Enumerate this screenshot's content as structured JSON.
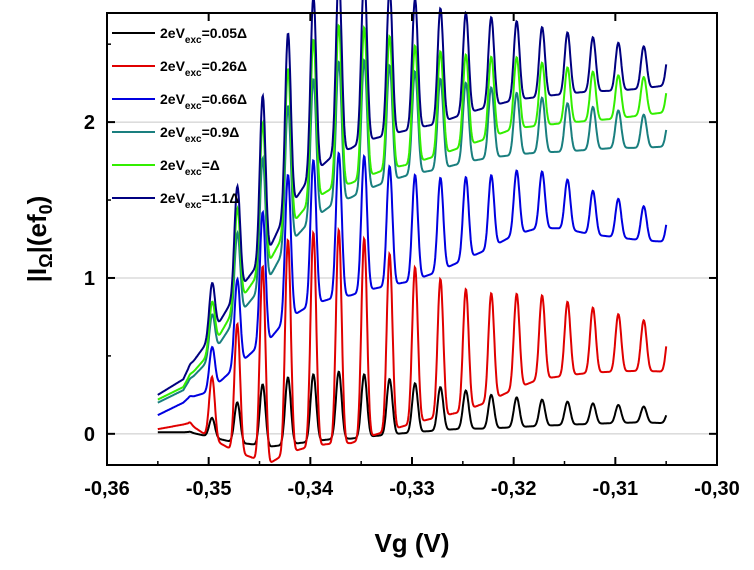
{
  "chart_data": {
    "type": "line",
    "title": "",
    "xlabel": "Vg (V)",
    "ylabel": "|I_Ω|(ef_0)",
    "ylabel_parts": {
      "main": "|I",
      "sub1": "Ω",
      "mid": "|(ef",
      "sub2": "0",
      "end": ")"
    },
    "xlim": [
      -0.36,
      -0.3
    ],
    "ylim": [
      -0.2,
      2.7
    ],
    "x_ticks": [
      -0.36,
      -0.35,
      -0.34,
      -0.33,
      -0.32,
      -0.31,
      -0.3
    ],
    "x_tick_labels": [
      "-0,36",
      "-0,35",
      "-0,34",
      "-0,33",
      "-0,32",
      "-0,31",
      "-0,30"
    ],
    "y_ticks": [
      0,
      1,
      2
    ],
    "y_tick_labels": [
      "0",
      "1",
      "2"
    ],
    "grid": "horizontal",
    "legend_position": "top-left",
    "x_range_data": [
      -0.355,
      -0.305
    ],
    "series": [
      {
        "name": "2eV_exc=0.05Δ",
        "label_parts": [
          "2eV",
          "exc",
          "=0.05Δ"
        ],
        "color": "#000000",
        "low": 0.02,
        "high": 0.45,
        "x": [
          -0.355,
          -0.3525,
          -0.35,
          -0.3475,
          -0.345,
          -0.3425,
          -0.34,
          -0.3375,
          -0.335,
          -0.3325,
          -0.33,
          -0.3275,
          -0.325,
          -0.3225,
          -0.32,
          -0.3175,
          -0.315,
          -0.3125,
          -0.31,
          -0.3075,
          -0.305
        ],
        "y": [
          0.01,
          0.01,
          0.02,
          0.03,
          0.06,
          0.08,
          0.1,
          0.12,
          0.12,
          0.12,
          0.12,
          0.12,
          0.12,
          0.11,
          0.11,
          0.11,
          0.11,
          0.11,
          0.11,
          0.11,
          0.1
        ]
      },
      {
        "name": "2eV_exc=0.26Δ",
        "label_parts": [
          "2eV",
          "exc",
          "=0.26Δ"
        ],
        "color": "#e00000",
        "low": 0.05,
        "high": 1.42,
        "x": [
          -0.355,
          -0.3525,
          -0.35,
          -0.3475,
          -0.345,
          -0.3425,
          -0.34,
          -0.3375,
          -0.335,
          -0.3325,
          -0.33,
          -0.3275,
          -0.325,
          -0.3225,
          -0.32,
          -0.3175,
          -0.315,
          -0.3125,
          -0.31,
          -0.3075,
          -0.305
        ],
        "y": [
          0.03,
          0.06,
          0.1,
          0.16,
          0.25,
          0.35,
          0.4,
          0.42,
          0.42,
          0.42,
          0.42,
          0.42,
          0.42,
          0.45,
          0.5,
          0.54,
          0.54,
          0.54,
          0.53,
          0.52,
          0.5
        ]
      },
      {
        "name": "2eV_exc=0.66Δ",
        "label_parts": [
          "2eV",
          "exc",
          "=0.66Δ"
        ],
        "color": "#0000e0",
        "low": 0.22,
        "high": 1.9,
        "x": [
          -0.355,
          -0.3525,
          -0.35,
          -0.3475,
          -0.345,
          -0.3425,
          -0.34,
          -0.3375,
          -0.335,
          -0.3325,
          -0.33,
          -0.3275,
          -0.325,
          -0.3225,
          -0.32,
          -0.3175,
          -0.315,
          -0.3125,
          -0.31,
          -0.3075,
          -0.305
        ],
        "y": [
          0.12,
          0.2,
          0.35,
          0.6,
          0.85,
          1.05,
          1.15,
          1.2,
          1.22,
          1.22,
          1.22,
          1.25,
          1.3,
          1.35,
          1.42,
          1.45,
          1.43,
          1.38,
          1.35,
          1.32,
          1.3
        ]
      },
      {
        "name": "2eV_exc=0.9Δ",
        "label_parts": [
          "2eV",
          "exc",
          "=0.9Δ"
        ],
        "color": "#1a7f7f",
        "low": 0.35,
        "high": 1.98,
        "x": [
          -0.355,
          -0.3525,
          -0.35,
          -0.3475,
          -0.345,
          -0.3425,
          -0.34,
          -0.3375,
          -0.335,
          -0.3325,
          -0.33,
          -0.3275,
          -0.325,
          -0.3225,
          -0.32,
          -0.3175,
          -0.315,
          -0.3125,
          -0.31,
          -0.3075,
          -0.305
        ],
        "y": [
          0.2,
          0.28,
          0.55,
          0.9,
          1.2,
          1.5,
          1.68,
          1.8,
          1.85,
          1.88,
          1.9,
          1.9,
          1.92,
          1.93,
          1.93,
          1.93,
          1.92,
          1.92,
          1.92,
          1.91,
          1.91
        ]
      },
      {
        "name": "2eV_exc=Δ",
        "label_parts": [
          "2eV",
          "exc",
          "=Δ"
        ],
        "color": "#33ee00",
        "low": 0.35,
        "high": 2.22,
        "x": [
          -0.355,
          -0.3525,
          -0.35,
          -0.3475,
          -0.345,
          -0.3425,
          -0.34,
          -0.3375,
          -0.335,
          -0.3325,
          -0.33,
          -0.3275,
          -0.325,
          -0.3225,
          -0.32,
          -0.3175,
          -0.315,
          -0.3125,
          -0.31,
          -0.3075,
          -0.305
        ],
        "y": [
          0.22,
          0.3,
          0.6,
          1.0,
          1.35,
          1.65,
          1.85,
          1.95,
          1.98,
          2.0,
          2.0,
          2.02,
          2.05,
          2.08,
          2.12,
          2.12,
          2.12,
          2.12,
          2.12,
          2.13,
          2.14
        ]
      },
      {
        "name": "2eV_exc=1.1Δ",
        "label_parts": [
          "2eV",
          "exc",
          "=1.1Δ"
        ],
        "color": "#000080",
        "low": 0.38,
        "high": 2.45,
        "x": [
          -0.355,
          -0.3525,
          -0.35,
          -0.3475,
          -0.345,
          -0.3425,
          -0.34,
          -0.3375,
          -0.335,
          -0.3325,
          -0.33,
          -0.3275,
          -0.325,
          -0.3225,
          -0.32,
          -0.3175,
          -0.315,
          -0.3125,
          -0.31,
          -0.3075,
          -0.305
        ],
        "y": [
          0.25,
          0.35,
          0.7,
          1.1,
          1.45,
          1.8,
          2.05,
          2.2,
          2.25,
          2.25,
          2.25,
          2.25,
          2.28,
          2.3,
          2.32,
          2.32,
          2.32,
          2.32,
          2.31,
          2.31,
          2.32
        ]
      }
    ]
  }
}
